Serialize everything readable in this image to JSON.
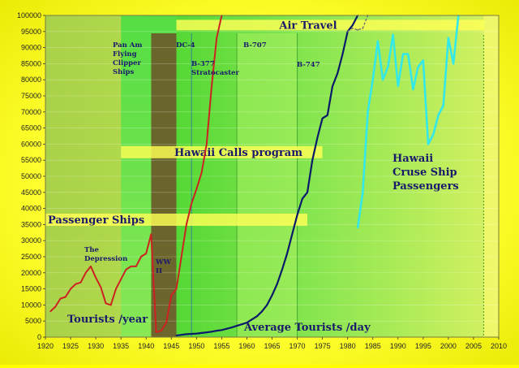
{
  "chart_data": {
    "type": "line",
    "xlim": [
      1920,
      2010
    ],
    "ylim": [
      0,
      100000
    ],
    "x_ticks": [
      1920,
      1925,
      1930,
      1935,
      1940,
      1945,
      1950,
      1955,
      1960,
      1965,
      1970,
      1975,
      1980,
      1985,
      1990,
      1995,
      2000,
      2005,
      2010
    ],
    "y_ticks": [
      0,
      5000,
      10000,
      15000,
      20000,
      25000,
      30000,
      35000,
      40000,
      45000,
      50000,
      55000,
      60000,
      65000,
      70000,
      75000,
      80000,
      85000,
      90000,
      95000,
      100000
    ],
    "colors": {
      "tourists_year": "#cc2222",
      "tourists_day": "#0a1a6a",
      "cruise": "#33e8e8",
      "air_extension": "#707070",
      "ww2": "#6a5a2a",
      "band": "#ffff55",
      "label": "#1a1a6a"
    },
    "series": [
      {
        "name": "Tourists /year",
        "color": "#cc2222",
        "points": [
          [
            1921,
            8000
          ],
          [
            1922,
            9500
          ],
          [
            1923,
            12000
          ],
          [
            1924,
            12500
          ],
          [
            1925,
            15000
          ],
          [
            1926,
            16500
          ],
          [
            1927,
            17000
          ],
          [
            1928,
            20000
          ],
          [
            1929,
            22000
          ],
          [
            1930,
            18500
          ],
          [
            1931,
            15500
          ],
          [
            1932,
            10500
          ],
          [
            1933,
            10000
          ],
          [
            1934,
            15000
          ],
          [
            1935,
            18000
          ],
          [
            1936,
            21000
          ],
          [
            1937,
            22000
          ],
          [
            1938,
            22000
          ],
          [
            1939,
            25000
          ],
          [
            1940,
            26000
          ],
          [
            1941,
            32000
          ],
          [
            1942,
            1500
          ],
          [
            1943,
            2000
          ],
          [
            1944,
            4500
          ],
          [
            1945,
            13000
          ],
          [
            1946,
            15000
          ],
          [
            1947,
            25000
          ],
          [
            1948,
            35000
          ],
          [
            1949,
            41500
          ],
          [
            1950,
            46000
          ],
          [
            1951,
            51000
          ],
          [
            1952,
            60000
          ],
          [
            1953,
            78000
          ],
          [
            1954,
            93000
          ],
          [
            1955,
            100000
          ]
        ]
      },
      {
        "name": "Average Tourists /day",
        "color": "#0a1a6a",
        "points": [
          [
            1946,
            500
          ],
          [
            1947,
            700
          ],
          [
            1948,
            900
          ],
          [
            1949,
            1000
          ],
          [
            1950,
            1100
          ],
          [
            1951,
            1300
          ],
          [
            1952,
            1500
          ],
          [
            1953,
            1700
          ],
          [
            1954,
            2000
          ],
          [
            1955,
            2200
          ],
          [
            1956,
            2600
          ],
          [
            1957,
            3000
          ],
          [
            1958,
            3500
          ],
          [
            1959,
            4000
          ],
          [
            1960,
            4500
          ],
          [
            1961,
            5500
          ],
          [
            1962,
            6500
          ],
          [
            1963,
            8000
          ],
          [
            1964,
            10000
          ],
          [
            1965,
            13000
          ],
          [
            1966,
            16500
          ],
          [
            1967,
            21000
          ],
          [
            1968,
            26000
          ],
          [
            1969,
            32000
          ],
          [
            1970,
            38000
          ],
          [
            1971,
            43000
          ],
          [
            1972,
            45000
          ],
          [
            1973,
            55000
          ],
          [
            1974,
            62000
          ],
          [
            1975,
            68000
          ],
          [
            1976,
            69000
          ],
          [
            1977,
            78000
          ],
          [
            1978,
            82000
          ],
          [
            1979,
            88000
          ],
          [
            1980,
            95000
          ],
          [
            1981,
            97000
          ],
          [
            1982,
            100000
          ]
        ]
      },
      {
        "name": "Hawaii Cruse Ship Passengers",
        "color": "#33e8e8",
        "points": [
          [
            1982,
            34000
          ],
          [
            1983,
            45000
          ],
          [
            1984,
            70000
          ],
          [
            1985,
            80000
          ],
          [
            1986,
            92000
          ],
          [
            1987,
            80000
          ],
          [
            1988,
            84000
          ],
          [
            1989,
            94000
          ],
          [
            1990,
            78000
          ],
          [
            1991,
            88000
          ],
          [
            1992,
            88000
          ],
          [
            1993,
            77000
          ],
          [
            1994,
            84000
          ],
          [
            1995,
            86000
          ],
          [
            1996,
            60000
          ],
          [
            1997,
            63000
          ],
          [
            1998,
            69000
          ],
          [
            1999,
            72000
          ],
          [
            2000,
            93000
          ],
          [
            2001,
            85000
          ],
          [
            2002,
            100000
          ]
        ]
      },
      {
        "name": "air-extension",
        "color": "#707070",
        "points": [
          [
            1980,
            95000
          ],
          [
            1981,
            96000
          ],
          [
            1982,
            95500
          ],
          [
            1983,
            96000
          ],
          [
            1984,
            100000
          ]
        ]
      }
    ],
    "bands": [
      {
        "label": "Air Travel",
        "x0": 1946,
        "x1": 2010,
        "y0": 94000,
        "y1": 100000
      },
      {
        "label": "Hawaii Calls program",
        "x0": 1935,
        "x1": 1975,
        "y0": 55000,
        "y1": 60000
      },
      {
        "label": "Passenger Ships",
        "x0": 1920,
        "x1": 1972,
        "y0": 34000,
        "y1": 39000
      }
    ],
    "shaded_regions": [
      {
        "label": "Pan Am Flying Clipper Ships",
        "x0": 1935,
        "x1": 1946
      },
      {
        "label": "WW II",
        "x0": 1941,
        "x1": 1946
      },
      {
        "label": "B-707",
        "x0": 1958,
        "x1": 1970
      },
      {
        "label": "Air Travel",
        "x0": 1946,
        "x1": 2007
      }
    ],
    "annotations": {
      "pan_am": [
        "Pan Am",
        "Flying",
        "Clipper",
        "Ships"
      ],
      "dc4": "DC-4",
      "b377": [
        "B-377",
        "Stratocaster"
      ],
      "b707": "B-707",
      "b747": "B-747",
      "ww2": [
        "WW",
        "II"
      ],
      "depression": [
        "The",
        "Depression"
      ],
      "tourists_year": "Tourists /year",
      "tourists_day": "Average Tourists /day",
      "cruise": [
        "Hawaii",
        "Cruse Ship",
        "Passengers"
      ]
    }
  }
}
